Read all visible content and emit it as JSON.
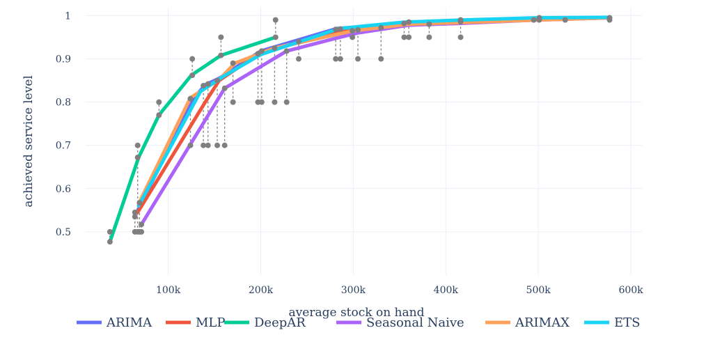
{
  "chart_data": {
    "type": "line",
    "xlabel": "average stock on hand",
    "ylabel": "achieved service level",
    "xlim": [
      10000,
      612000
    ],
    "ylim": [
      0.4,
      1.02
    ],
    "grid": true,
    "legend_position": "bottom",
    "x_ticks": [
      {
        "value": 100000,
        "label": "100k"
      },
      {
        "value": 200000,
        "label": "200k"
      },
      {
        "value": 300000,
        "label": "300k"
      },
      {
        "value": 400000,
        "label": "400k"
      },
      {
        "value": 500000,
        "label": "500k"
      },
      {
        "value": 600000,
        "label": "600k"
      }
    ],
    "y_ticks": [
      {
        "value": 0.5,
        "label": "0.5"
      },
      {
        "value": 0.6,
        "label": "0.6"
      },
      {
        "value": 0.7,
        "label": "0.7"
      },
      {
        "value": 0.8,
        "label": "0.8"
      },
      {
        "value": 0.9,
        "label": "0.9"
      },
      {
        "value": 1.0,
        "label": "1"
      }
    ],
    "series": [
      {
        "name": "ARIMA",
        "color": "#636efa",
        "x": [
          66000,
          128000,
          140000,
          155000,
          200000,
          282000,
          360000,
          500000,
          578000
        ],
        "y": [
          0.545,
          0.81,
          0.84,
          0.855,
          0.918,
          0.97,
          0.983,
          0.992,
          0.995
        ]
      },
      {
        "name": "MLP",
        "color": "#ef553b",
        "x": [
          67000,
          140000,
          155000,
          200000,
          285000,
          360000,
          500000,
          578000
        ],
        "y": [
          0.545,
          0.8,
          0.85,
          0.915,
          0.962,
          0.98,
          0.99,
          0.995
        ]
      },
      {
        "name": "DeepAR",
        "color": "#00cc96",
        "x": [
          37000,
          68000,
          90000,
          125000,
          157000,
          216000
        ],
        "y": [
          0.477,
          0.672,
          0.77,
          0.862,
          0.908,
          0.95
        ]
      },
      {
        "name": "Seasonal Naive",
        "color": "#ab63fa",
        "x": [
          71000,
          161000,
          228000,
          282000,
          305000,
          360000,
          415000,
          500000,
          578000
        ],
        "y": [
          0.517,
          0.832,
          0.918,
          0.948,
          0.96,
          0.978,
          0.982,
          0.99,
          0.995
        ]
      },
      {
        "name": "ARIMAX",
        "color": "#ffa15a",
        "x": [
          68000,
          124000,
          155000,
          172000,
          215000,
          300000,
          360000,
          500000,
          578000
        ],
        "y": [
          0.565,
          0.81,
          0.852,
          0.89,
          0.925,
          0.965,
          0.98,
          0.99,
          0.995
        ]
      },
      {
        "name": "ETS",
        "color": "#19d3f3",
        "x": [
          68000,
          135000,
          160000,
          200000,
          285000,
          355000,
          420000,
          500000,
          578000
        ],
        "y": [
          0.56,
          0.825,
          0.86,
          0.91,
          0.97,
          0.985,
          0.99,
          0.995,
          0.996
        ]
      }
    ],
    "points": [
      {
        "x": 37000,
        "y": 0.5
      },
      {
        "x": 37000,
        "y": 0.477
      },
      {
        "x": 64000,
        "y": 0.5
      },
      {
        "x": 64000,
        "y": 0.535
      },
      {
        "x": 64000,
        "y": 0.545
      },
      {
        "x": 67000,
        "y": 0.5
      },
      {
        "x": 67000,
        "y": 0.672
      },
      {
        "x": 67000,
        "y": 0.7
      },
      {
        "x": 69000,
        "y": 0.5
      },
      {
        "x": 69000,
        "y": 0.567
      },
      {
        "x": 71000,
        "y": 0.5
      },
      {
        "x": 71000,
        "y": 0.517
      },
      {
        "x": 90000,
        "y": 0.77
      },
      {
        "x": 90000,
        "y": 0.8
      },
      {
        "x": 124000,
        "y": 0.7
      },
      {
        "x": 124000,
        "y": 0.808
      },
      {
        "x": 126000,
        "y": 0.862
      },
      {
        "x": 126000,
        "y": 0.9
      },
      {
        "x": 138000,
        "y": 0.7
      },
      {
        "x": 138000,
        "y": 0.838
      },
      {
        "x": 143000,
        "y": 0.7
      },
      {
        "x": 143000,
        "y": 0.842
      },
      {
        "x": 153000,
        "y": 0.7
      },
      {
        "x": 153000,
        "y": 0.85
      },
      {
        "x": 157000,
        "y": 0.908
      },
      {
        "x": 157000,
        "y": 0.95
      },
      {
        "x": 161000,
        "y": 0.7
      },
      {
        "x": 161000,
        "y": 0.832
      },
      {
        "x": 170000,
        "y": 0.8
      },
      {
        "x": 170000,
        "y": 0.89
      },
      {
        "x": 197000,
        "y": 0.8
      },
      {
        "x": 197000,
        "y": 0.912
      },
      {
        "x": 201000,
        "y": 0.8
      },
      {
        "x": 201000,
        "y": 0.918
      },
      {
        "x": 215000,
        "y": 0.8
      },
      {
        "x": 215000,
        "y": 0.925
      },
      {
        "x": 216000,
        "y": 0.95
      },
      {
        "x": 216000,
        "y": 0.99
      },
      {
        "x": 228000,
        "y": 0.8
      },
      {
        "x": 228000,
        "y": 0.918
      },
      {
        "x": 241000,
        "y": 0.9
      },
      {
        "x": 241000,
        "y": 0.94
      },
      {
        "x": 281000,
        "y": 0.9
      },
      {
        "x": 281000,
        "y": 0.968
      },
      {
        "x": 286000,
        "y": 0.9
      },
      {
        "x": 286000,
        "y": 0.969
      },
      {
        "x": 299000,
        "y": 0.95
      },
      {
        "x": 299000,
        "y": 0.965
      },
      {
        "x": 305000,
        "y": 0.9
      },
      {
        "x": 305000,
        "y": 0.967
      },
      {
        "x": 330000,
        "y": 0.9
      },
      {
        "x": 330000,
        "y": 0.972
      },
      {
        "x": 355000,
        "y": 0.95
      },
      {
        "x": 355000,
        "y": 0.982
      },
      {
        "x": 360000,
        "y": 0.95
      },
      {
        "x": 360000,
        "y": 0.985
      },
      {
        "x": 382000,
        "y": 0.95
      },
      {
        "x": 382000,
        "y": 0.98
      },
      {
        "x": 416000,
        "y": 0.95
      },
      {
        "x": 416000,
        "y": 0.986
      },
      {
        "x": 416000,
        "y": 0.99
      },
      {
        "x": 495000,
        "y": 0.99
      },
      {
        "x": 501000,
        "y": 0.99
      },
      {
        "x": 501000,
        "y": 0.995
      },
      {
        "x": 529000,
        "y": 0.99
      },
      {
        "x": 577000,
        "y": 0.99
      },
      {
        "x": 577000,
        "y": 0.995
      }
    ],
    "dashed_links": [
      {
        "x": 37000,
        "y0": 0.477,
        "y1": 0.5
      },
      {
        "x": 64000,
        "y0": 0.5,
        "y1": 0.545
      },
      {
        "x": 67000,
        "y0": 0.5,
        "y1": 0.7
      },
      {
        "x": 69000,
        "y0": 0.5,
        "y1": 0.567
      },
      {
        "x": 71000,
        "y0": 0.5,
        "y1": 0.517
      },
      {
        "x": 90000,
        "y0": 0.77,
        "y1": 0.8
      },
      {
        "x": 124000,
        "y0": 0.7,
        "y1": 0.808
      },
      {
        "x": 126000,
        "y0": 0.862,
        "y1": 0.9
      },
      {
        "x": 138000,
        "y0": 0.7,
        "y1": 0.838
      },
      {
        "x": 143000,
        "y0": 0.7,
        "y1": 0.842
      },
      {
        "x": 153000,
        "y0": 0.7,
        "y1": 0.85
      },
      {
        "x": 157000,
        "y0": 0.908,
        "y1": 0.95
      },
      {
        "x": 161000,
        "y0": 0.7,
        "y1": 0.832
      },
      {
        "x": 170000,
        "y0": 0.8,
        "y1": 0.89
      },
      {
        "x": 197000,
        "y0": 0.8,
        "y1": 0.912
      },
      {
        "x": 201000,
        "y0": 0.8,
        "y1": 0.918
      },
      {
        "x": 215000,
        "y0": 0.8,
        "y1": 0.925
      },
      {
        "x": 216000,
        "y0": 0.95,
        "y1": 0.99
      },
      {
        "x": 228000,
        "y0": 0.8,
        "y1": 0.918
      },
      {
        "x": 241000,
        "y0": 0.9,
        "y1": 0.94
      },
      {
        "x": 281000,
        "y0": 0.9,
        "y1": 0.968
      },
      {
        "x": 286000,
        "y0": 0.9,
        "y1": 0.969
      },
      {
        "x": 299000,
        "y0": 0.95,
        "y1": 0.965
      },
      {
        "x": 305000,
        "y0": 0.9,
        "y1": 0.967
      },
      {
        "x": 330000,
        "y0": 0.9,
        "y1": 0.972
      },
      {
        "x": 355000,
        "y0": 0.95,
        "y1": 0.982
      },
      {
        "x": 360000,
        "y0": 0.95,
        "y1": 0.985
      },
      {
        "x": 382000,
        "y0": 0.95,
        "y1": 0.98
      },
      {
        "x": 416000,
        "y0": 0.95,
        "y1": 0.99
      }
    ]
  }
}
